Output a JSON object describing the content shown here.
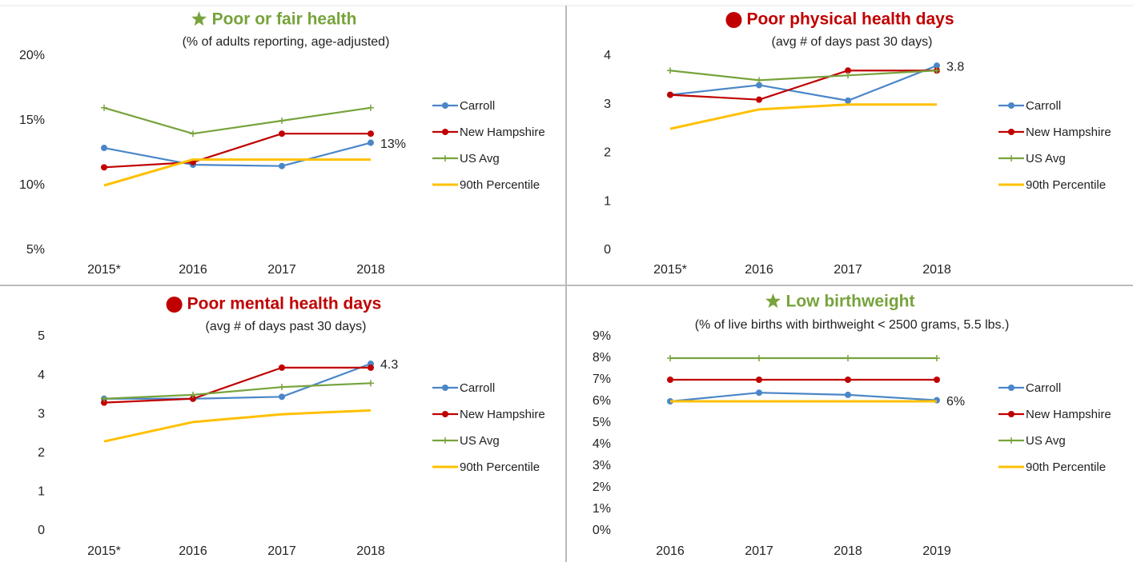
{
  "chart_data": [
    {
      "type": "line",
      "title": "Poor or fair health",
      "subtitle": "(% of adults reporting, age-adjusted)",
      "title_color": "#77a33c",
      "categories": [
        "2015*",
        "2016",
        "2017",
        "2018"
      ],
      "ylim": [
        5,
        20
      ],
      "yticks": [
        {
          "value": 5,
          "label": "5%"
        },
        {
          "value": 10,
          "label": "10%"
        },
        {
          "value": 15,
          "label": "15%"
        },
        {
          "value": 20,
          "label": "20%"
        }
      ],
      "series": [
        {
          "name": "Carroll",
          "color": "#4a86c8",
          "marker": "circle",
          "values": [
            12.9,
            11.6,
            11.5,
            13.3
          ],
          "value_labels": [
            null,
            null,
            null,
            "13%"
          ]
        },
        {
          "name": "New Hampshire",
          "color": "#c00000",
          "marker": "circle",
          "values": [
            11.4,
            11.8,
            14,
            14
          ]
        },
        {
          "name": "US Avg",
          "color": "#77a33c",
          "marker": "plus",
          "values": [
            16,
            14,
            15,
            16
          ]
        },
        {
          "name": "90th Percentile",
          "color": "#ffc000",
          "linewidth": 3,
          "values": [
            10,
            12,
            12,
            12
          ]
        }
      ]
    },
    {
      "type": "line",
      "title": "Poor physical health days",
      "subtitle": "(avg # of days past 30 days)",
      "title_color": "#c00000",
      "categories": [
        "2015*",
        "2016",
        "2017",
        "2018"
      ],
      "ylim": [
        0,
        4
      ],
      "yticks": [
        0,
        1,
        2,
        3,
        4
      ],
      "series": [
        {
          "name": "Carroll",
          "color": "#4a86c8",
          "marker": "circle",
          "values": [
            3.2,
            3.4,
            3.08,
            3.8
          ],
          "value_labels": [
            null,
            null,
            null,
            "3.8"
          ]
        },
        {
          "name": "New Hampshire",
          "color": "#c00000",
          "marker": "circle",
          "values": [
            3.2,
            3.1,
            3.7,
            3.7
          ]
        },
        {
          "name": "US Avg",
          "color": "#77a33c",
          "marker": "plus",
          "values": [
            3.7,
            3.5,
            3.6,
            3.7
          ]
        },
        {
          "name": "90th Percentile",
          "color": "#ffc000",
          "linewidth": 3,
          "values": [
            2.5,
            2.9,
            3.0,
            3.0
          ]
        }
      ]
    },
    {
      "type": "line",
      "title": "Poor mental health days",
      "subtitle": "(avg # of days past 30 days)",
      "title_color": "#c00000",
      "categories": [
        "2015*",
        "2016",
        "2017",
        "2018"
      ],
      "ylim": [
        0,
        5
      ],
      "yticks": [
        0,
        1,
        2,
        3,
        4,
        5
      ],
      "series": [
        {
          "name": "Carroll",
          "color": "#4a86c8",
          "marker": "circle",
          "values": [
            3.4,
            3.4,
            3.45,
            4.3
          ],
          "value_labels": [
            null,
            null,
            null,
            "4.3"
          ]
        },
        {
          "name": "New Hampshire",
          "color": "#c00000",
          "marker": "circle",
          "values": [
            3.3,
            3.4,
            4.2,
            4.2
          ]
        },
        {
          "name": "US Avg",
          "color": "#77a33c",
          "marker": "plus",
          "values": [
            3.4,
            3.5,
            3.7,
            3.8
          ]
        },
        {
          "name": "90th Percentile",
          "color": "#ffc000",
          "linewidth": 3,
          "values": [
            2.3,
            2.8,
            3.0,
            3.1
          ]
        }
      ]
    },
    {
      "type": "line",
      "title": "Low birthweight",
      "subtitle": "(% of live births with birthweight < 2500 grams, 5.5 lbs.)",
      "title_color": "#77a33c",
      "categories": [
        "2016",
        "2017",
        "2018",
        "2019"
      ],
      "ylim": [
        0,
        9
      ],
      "yticks": [
        {
          "value": 0,
          "label": "0%"
        },
        {
          "value": 1,
          "label": "1%"
        },
        {
          "value": 2,
          "label": "2%"
        },
        {
          "value": 3,
          "label": "3%"
        },
        {
          "value": 4,
          "label": "4%"
        },
        {
          "value": 5,
          "label": "5%"
        },
        {
          "value": 6,
          "label": "6%"
        },
        {
          "value": 7,
          "label": "7%"
        },
        {
          "value": 8,
          "label": "8%"
        },
        {
          "value": 9,
          "label": "9%"
        }
      ],
      "series": [
        {
          "name": "Carroll",
          "color": "#4a86c8",
          "marker": "circle",
          "values": [
            6.0,
            6.4,
            6.3,
            6.05
          ],
          "value_labels": [
            null,
            null,
            null,
            "6%"
          ]
        },
        {
          "name": "New Hampshire",
          "color": "#c00000",
          "marker": "circle",
          "values": [
            7,
            7,
            7,
            7
          ]
        },
        {
          "name": "US Avg",
          "color": "#77a33c",
          "marker": "plus",
          "values": [
            8,
            8,
            8,
            8
          ]
        },
        {
          "name": "90th Percentile",
          "color": "#ffc000",
          "linewidth": 3,
          "values": [
            6,
            6,
            6,
            6
          ]
        }
      ]
    }
  ]
}
